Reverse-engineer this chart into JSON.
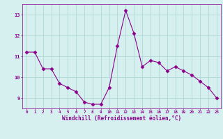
{
  "x": [
    0,
    1,
    2,
    3,
    4,
    5,
    6,
    7,
    8,
    9,
    10,
    11,
    12,
    13,
    14,
    15,
    16,
    17,
    18,
    19,
    20,
    21,
    22,
    23
  ],
  "y": [
    11.2,
    11.2,
    10.4,
    10.4,
    9.7,
    9.5,
    9.3,
    8.8,
    8.7,
    8.7,
    9.5,
    11.5,
    13.2,
    12.1,
    10.5,
    10.8,
    10.7,
    10.3,
    10.5,
    10.3,
    10.1,
    9.8,
    9.5,
    9.0
  ],
  "line_color": "#8B008B",
  "marker": "D",
  "marker_size": 2.5,
  "bg_color": "#d6f0f0",
  "grid_color": "#b0d8d8",
  "xlabel": "Windchill (Refroidissement éolien,°C)",
  "xlabel_color": "#8B008B",
  "tick_color": "#8B008B",
  "ylim": [
    8.5,
    13.5
  ],
  "xlim": [
    -0.5,
    23.5
  ],
  "yticks": [
    9,
    10,
    11,
    12,
    13
  ],
  "xticks": [
    0,
    1,
    2,
    3,
    4,
    5,
    6,
    7,
    8,
    9,
    10,
    11,
    12,
    13,
    14,
    15,
    16,
    17,
    18,
    19,
    20,
    21,
    22,
    23
  ]
}
